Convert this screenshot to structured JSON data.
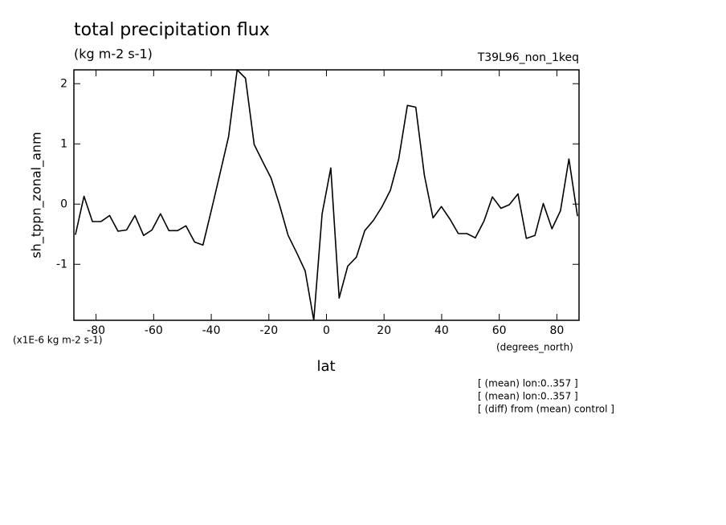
{
  "chart_data": {
    "type": "line",
    "title": "total precipitation flux",
    "subtitle": "(kg m-2 s-1)",
    "dataset": "T39L96_non_1keq",
    "ylabel": "sh_tppn_zonal_anm",
    "yunits": "(x1E-6 kg m-2 s-1)",
    "xunits": "(degrees_north)",
    "xlabel": "lat",
    "notes": [
      "[ (mean) lon:0..357 ]",
      "[ (mean) lon:0..357 ]",
      "[ (diff) from (mean) control ]"
    ],
    "xlim": [
      -87.7,
      87.7
    ],
    "ylim": [
      -1.93,
      2.23
    ],
    "xticks": [
      -80,
      -60,
      -40,
      -20,
      0,
      20,
      40,
      60,
      80
    ],
    "yticks": [
      -1,
      0,
      1,
      2
    ],
    "grid": false,
    "series": [
      {
        "color": "#000000",
        "x": [
          -87.16,
          -84.2,
          -81.25,
          -78.3,
          -75.3,
          -72.4,
          -69.4,
          -66.5,
          -63.5,
          -60.6,
          -57.6,
          -54.7,
          -51.7,
          -48.8,
          -45.8,
          -42.9,
          -39.9,
          -37.0,
          -34.0,
          -31.0,
          -28.1,
          -25.1,
          -22.2,
          -19.2,
          -16.3,
          -13.3,
          -10.4,
          -7.4,
          -4.4,
          -1.5,
          1.5,
          4.4,
          7.4,
          10.4,
          13.3,
          16.3,
          19.2,
          22.2,
          25.1,
          28.1,
          31.0,
          34.0,
          37.0,
          39.9,
          42.9,
          45.8,
          48.8,
          51.7,
          54.7,
          57.6,
          60.6,
          63.5,
          66.5,
          69.4,
          72.4,
          75.3,
          78.3,
          81.25,
          84.2,
          87.16
        ],
        "values": [
          -0.51,
          0.13,
          -0.29,
          -0.29,
          -0.19,
          -0.45,
          -0.43,
          -0.19,
          -0.52,
          -0.43,
          -0.16,
          -0.44,
          -0.44,
          -0.36,
          -0.63,
          -0.68,
          -0.09,
          0.5,
          1.12,
          2.23,
          2.09,
          0.99,
          0.71,
          0.43,
          -0.01,
          -0.52,
          -0.8,
          -1.11,
          -1.93,
          -0.16,
          0.6,
          -1.56,
          -1.03,
          -0.88,
          -0.44,
          -0.27,
          -0.05,
          0.23,
          0.75,
          1.64,
          1.61,
          0.48,
          -0.23,
          -0.04,
          -0.25,
          -0.49,
          -0.49,
          -0.56,
          -0.28,
          0.12,
          -0.07,
          -0.01,
          0.17,
          -0.57,
          -0.52,
          0.01,
          -0.41,
          -0.11,
          0.75,
          -0.2
        ]
      }
    ]
  }
}
